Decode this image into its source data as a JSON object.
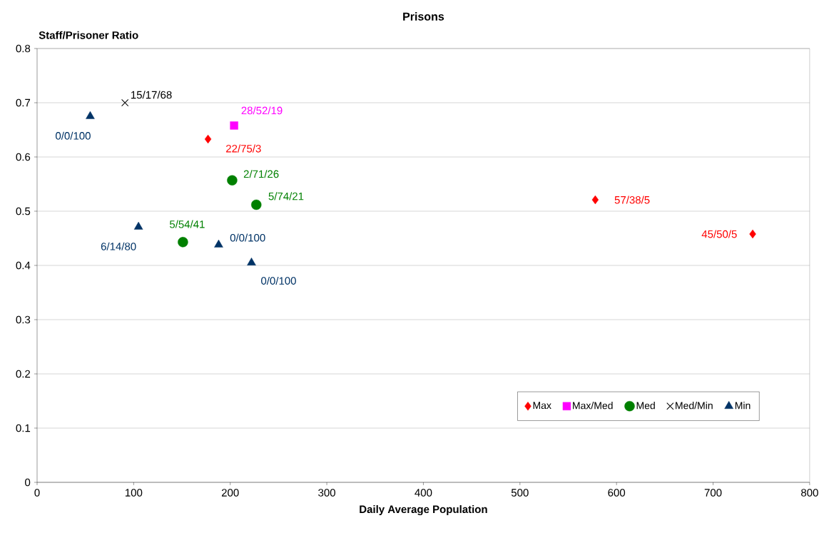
{
  "chart_data": {
    "type": "scatter",
    "title": "Prisons",
    "xlabel": "Daily Average Population",
    "ylabel": "Staff/Prisoner Ratio",
    "xlim": [
      0,
      800
    ],
    "xticks": [
      0,
      100,
      200,
      300,
      400,
      500,
      600,
      700,
      800
    ],
    "ylim": [
      0,
      0.8
    ],
    "yticks": [
      0,
      0.1,
      0.2,
      0.3,
      0.4,
      0.5,
      0.6,
      0.7,
      0.8
    ],
    "grid": "y",
    "legend": "bottom right",
    "series": [
      {
        "name": "Max",
        "color": "#ff0000",
        "marker": "diamond",
        "x": [
          177,
          578,
          741
        ],
        "values": [
          0.633,
          0.521,
          0.458
        ],
        "value_labels": [
          "22/75/3",
          "57/38/5",
          "45/50/5"
        ]
      },
      {
        "name": "Max/Med",
        "color": "#ff00ff",
        "marker": "square",
        "x": [
          204
        ],
        "values": [
          0.658
        ],
        "value_labels": [
          "28/52/19"
        ]
      },
      {
        "name": "Med",
        "color": "#008000",
        "marker": "circle",
        "x": [
          202,
          227,
          151
        ],
        "values": [
          0.557,
          0.512,
          0.443
        ],
        "value_labels": [
          "2/71/26",
          "5/74/21",
          "5/54/41"
        ]
      },
      {
        "name": "Med/Min",
        "color": "#000000",
        "marker": "cross",
        "x": [
          91
        ],
        "values": [
          0.7
        ],
        "value_labels": [
          "15/17/68"
        ]
      },
      {
        "name": "Min",
        "color": "#003366",
        "marker": "triangle",
        "x": [
          55,
          105,
          188,
          222
        ],
        "values": [
          0.675,
          0.471,
          0.438,
          0.405
        ],
        "value_labels": [
          "0/0/100",
          "6/14/80",
          "0/0/100",
          "0/0/100"
        ]
      }
    ]
  }
}
